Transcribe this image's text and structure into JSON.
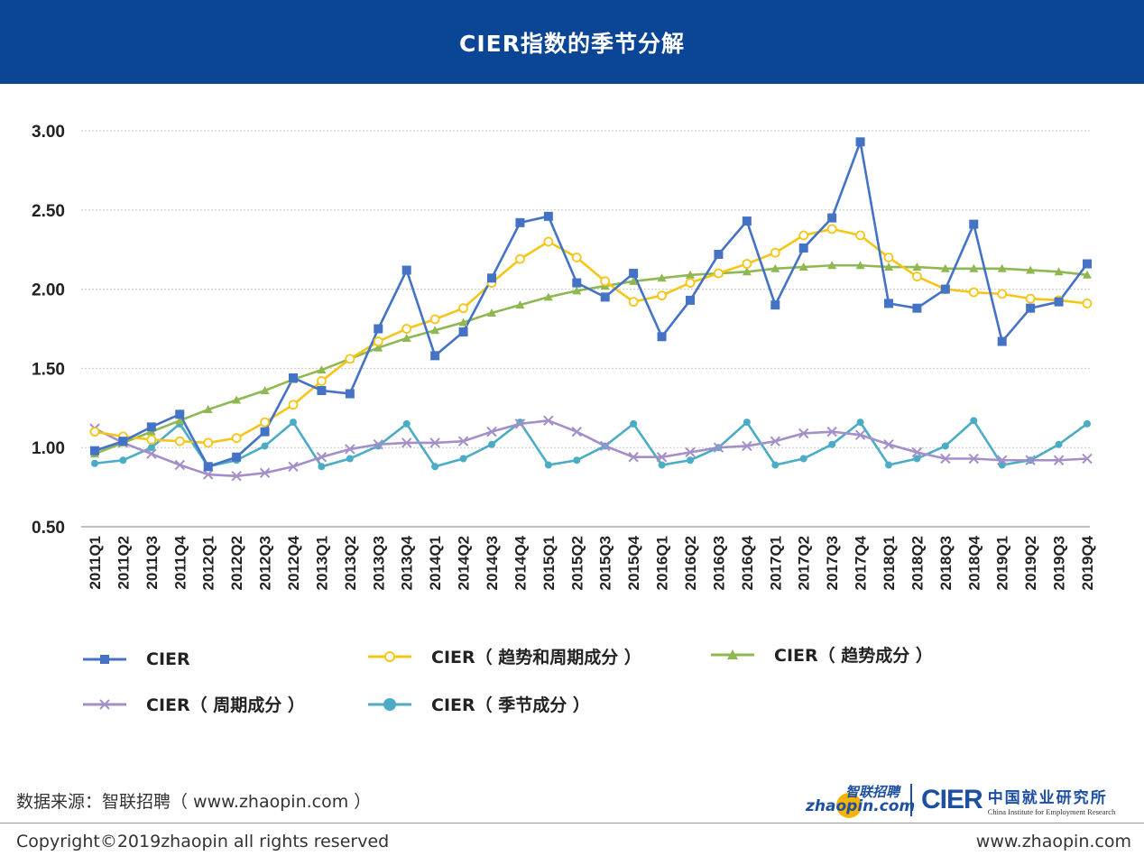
{
  "header": {
    "title": "CIER指数的季节分解"
  },
  "chart_data": {
    "type": "line",
    "title": "CIER指数的季节分解",
    "ylim": [
      0.5,
      3.0
    ],
    "yticks": [
      "3.00",
      "2.50",
      "2.00",
      "1.50",
      "1.00",
      "0.50"
    ],
    "grid": "horizontal dotted",
    "legend_position": "bottom",
    "categories": [
      "2011Q1",
      "2011Q2",
      "2011Q3",
      "2011Q4",
      "2012Q1",
      "2012Q2",
      "2012Q3",
      "2012Q4",
      "2013Q1",
      "2013Q2",
      "2013Q3",
      "2013Q4",
      "2014Q1",
      "2014Q2",
      "2014Q3",
      "2014Q4",
      "2015Q1",
      "2015Q2",
      "2015Q3",
      "2015Q4",
      "2016Q1",
      "2016Q2",
      "2016Q3",
      "2016Q4",
      "2017Q1",
      "2017Q2",
      "2017Q3",
      "2017Q4",
      "2018Q1",
      "2018Q2",
      "2018Q3",
      "2018Q4",
      "2019Q1",
      "2019Q2",
      "2019Q3",
      "2019Q4"
    ],
    "series": [
      {
        "name": "CIER",
        "color": "#4472c4",
        "marker": "square",
        "values": [
          0.98,
          1.04,
          1.13,
          1.21,
          0.88,
          0.94,
          1.1,
          1.44,
          1.36,
          1.34,
          1.75,
          2.12,
          1.58,
          1.73,
          2.07,
          2.42,
          2.46,
          2.04,
          1.95,
          2.1,
          1.7,
          1.93,
          2.22,
          2.43,
          1.9,
          2.26,
          2.45,
          2.93,
          1.91,
          1.88,
          2.0,
          2.41,
          1.67,
          1.88,
          1.92,
          2.16
        ]
      },
      {
        "name": "CIER（ 趋势和周期成分 ）",
        "color": "#f5c518",
        "marker": "open-circle",
        "values": [
          1.1,
          1.07,
          1.05,
          1.04,
          1.03,
          1.06,
          1.16,
          1.27,
          1.42,
          1.56,
          1.67,
          1.75,
          1.81,
          1.88,
          2.04,
          2.19,
          2.3,
          2.2,
          2.05,
          1.92,
          1.96,
          2.04,
          2.1,
          2.16,
          2.23,
          2.34,
          2.38,
          2.34,
          2.2,
          2.08,
          2.0,
          1.98,
          1.97,
          1.94,
          1.93,
          1.91
        ]
      },
      {
        "name": "CIER（ 趋势成分 ）",
        "color": "#8fb853",
        "marker": "triangle",
        "values": [
          0.96,
          1.03,
          1.1,
          1.17,
          1.24,
          1.3,
          1.36,
          1.43,
          1.49,
          1.56,
          1.63,
          1.69,
          1.74,
          1.79,
          1.85,
          1.9,
          1.95,
          1.99,
          2.02,
          2.05,
          2.07,
          2.09,
          2.1,
          2.11,
          2.13,
          2.14,
          2.15,
          2.15,
          2.14,
          2.14,
          2.13,
          2.13,
          2.13,
          2.12,
          2.11,
          2.09
        ]
      },
      {
        "name": "CIER（ 周期成分 ）",
        "color": "#a48fc8",
        "marker": "cross",
        "values": [
          1.12,
          1.03,
          0.96,
          0.89,
          0.83,
          0.82,
          0.84,
          0.88,
          0.94,
          0.99,
          1.02,
          1.03,
          1.03,
          1.04,
          1.1,
          1.15,
          1.17,
          1.1,
          1.01,
          0.94,
          0.94,
          0.97,
          1.0,
          1.01,
          1.04,
          1.09,
          1.1,
          1.08,
          1.02,
          0.97,
          0.93,
          0.93,
          0.92,
          0.92,
          0.92,
          0.93
        ]
      },
      {
        "name": "CIER（ 季节成分 ）",
        "color": "#4bacc6",
        "marker": "dot",
        "values": [
          0.9,
          0.92,
          1.0,
          1.15,
          0.88,
          0.92,
          1.01,
          1.16,
          0.88,
          0.93,
          1.01,
          1.15,
          0.88,
          0.93,
          1.02,
          1.16,
          0.89,
          0.92,
          1.01,
          1.15,
          0.89,
          0.92,
          1.0,
          1.16,
          0.89,
          0.93,
          1.02,
          1.16,
          0.89,
          0.93,
          1.01,
          1.17,
          0.89,
          0.92,
          1.02,
          1.15
        ]
      }
    ]
  },
  "footer": {
    "source": "数据来源：智联招聘（ www.zhaopin.com ）",
    "logo_zhaopin_cn": "智联招聘",
    "logo_zhaopin_en": "zhaopin.com",
    "logo_cier": "CIER",
    "logo_cier_cn": "中国就业研究所",
    "logo_cier_en": "China Institute for Employment Research",
    "copyright": "Copyright©2019zhaopin all rights reserved",
    "website": "www.zhaopin.com"
  }
}
